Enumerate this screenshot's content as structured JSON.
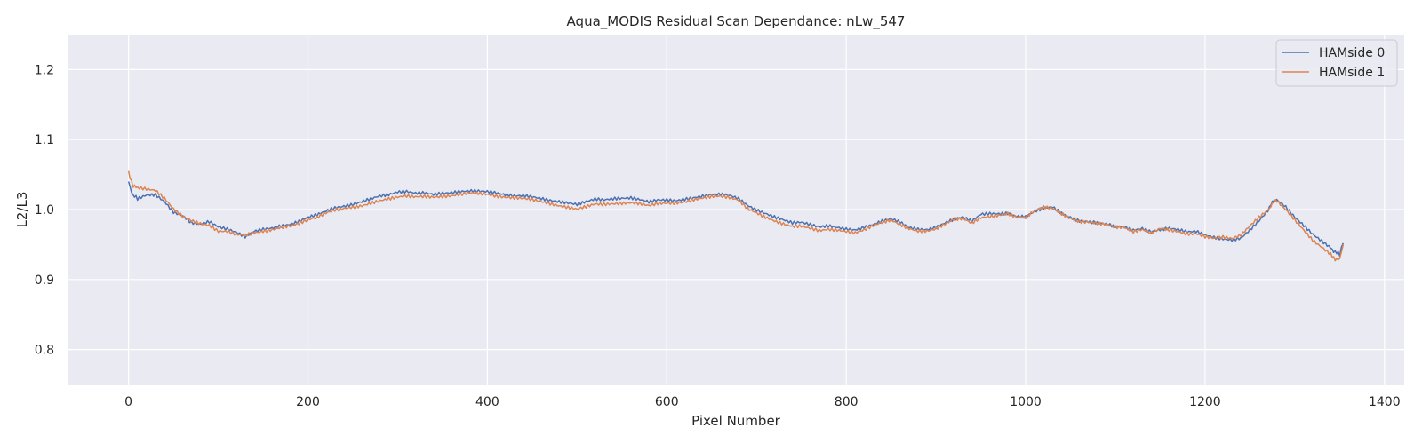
{
  "chart_data": {
    "type": "line",
    "title": "Aqua_MODIS Residual Scan Dependance: nLw_547",
    "xlabel": "Pixel Number",
    "ylabel": "L2/L3",
    "xlim": [
      -67,
      1422
    ],
    "ylim": [
      0.75,
      1.25
    ],
    "xticks": [
      0,
      200,
      400,
      600,
      800,
      1000,
      1200,
      1400
    ],
    "xtick_labels": [
      "0",
      "200",
      "400",
      "600",
      "800",
      "1000",
      "1200",
      "1400"
    ],
    "yticks": [
      0.8,
      0.9,
      1.0,
      1.1,
      1.2
    ],
    "ytick_labels": [
      "0.8",
      "0.9",
      "1.0",
      "1.1",
      "1.2"
    ],
    "grid": true,
    "legend_position": "top-right",
    "background_color": "#eaeaf2",
    "series": [
      {
        "name": "HAMside 0",
        "color": "#4c72b0",
        "x": [
          0,
          5,
          10,
          20,
          30,
          40,
          50,
          60,
          70,
          80,
          90,
          100,
          110,
          120,
          130,
          140,
          150,
          160,
          170,
          180,
          190,
          200,
          210,
          220,
          230,
          240,
          250,
          260,
          270,
          280,
          290,
          300,
          310,
          320,
          330,
          340,
          350,
          360,
          370,
          380,
          390,
          400,
          410,
          420,
          430,
          440,
          450,
          460,
          470,
          480,
          490,
          500,
          510,
          520,
          530,
          540,
          550,
          560,
          570,
          580,
          590,
          600,
          610,
          620,
          630,
          640,
          650,
          660,
          670,
          680,
          690,
          700,
          710,
          720,
          730,
          740,
          750,
          760,
          770,
          780,
          790,
          800,
          810,
          820,
          830,
          840,
          850,
          860,
          870,
          880,
          890,
          900,
          910,
          920,
          930,
          940,
          950,
          960,
          970,
          980,
          990,
          1000,
          1010,
          1020,
          1030,
          1040,
          1050,
          1060,
          1070,
          1080,
          1090,
          1100,
          1110,
          1120,
          1130,
          1140,
          1150,
          1160,
          1170,
          1180,
          1190,
          1200,
          1210,
          1220,
          1230,
          1240,
          1250,
          1260,
          1270,
          1275,
          1280,
          1290,
          1300,
          1310,
          1320,
          1330,
          1340,
          1345,
          1350,
          1354
        ],
        "y": [
          1.04,
          1.02,
          1.015,
          1.02,
          1.02,
          1.01,
          0.995,
          0.99,
          0.98,
          0.978,
          0.982,
          0.975,
          0.972,
          0.968,
          0.962,
          0.97,
          0.973,
          0.975,
          0.978,
          0.98,
          0.984,
          0.99,
          0.993,
          0.998,
          1.002,
          1.004,
          1.006,
          1.01,
          1.014,
          1.018,
          1.02,
          1.024,
          1.025,
          1.023,
          1.024,
          1.022,
          1.024,
          1.025,
          1.027,
          1.028,
          1.028,
          1.027,
          1.025,
          1.022,
          1.02,
          1.02,
          1.018,
          1.015,
          1.012,
          1.01,
          1.008,
          1.006,
          1.01,
          1.014,
          1.013,
          1.015,
          1.016,
          1.017,
          1.015,
          1.012,
          1.015,
          1.015,
          1.014,
          1.016,
          1.018,
          1.02,
          1.022,
          1.022,
          1.02,
          1.015,
          1.005,
          0.998,
          0.993,
          0.988,
          0.984,
          0.98,
          0.981,
          0.978,
          0.975,
          0.977,
          0.975,
          0.973,
          0.972,
          0.976,
          0.98,
          0.985,
          0.988,
          0.983,
          0.975,
          0.972,
          0.971,
          0.974,
          0.98,
          0.985,
          0.988,
          0.982,
          0.992,
          0.993,
          0.993,
          0.994,
          0.99,
          0.99,
          0.998,
          1.003,
          1.005,
          0.996,
          0.99,
          0.985,
          0.984,
          0.982,
          0.98,
          0.976,
          0.975,
          0.97,
          0.972,
          0.967,
          0.97,
          0.972,
          0.97,
          0.967,
          0.968,
          0.963,
          0.96,
          0.958,
          0.957,
          0.96,
          0.972,
          0.985,
          1.0,
          1.01,
          1.015,
          1.005,
          0.99,
          0.978,
          0.965,
          0.955,
          0.945,
          0.94,
          0.935,
          0.952
        ]
      },
      {
        "name": "HAMside 1",
        "color": "#dd8452",
        "x": [
          0,
          5,
          10,
          20,
          30,
          40,
          50,
          60,
          70,
          80,
          90,
          100,
          110,
          120,
          130,
          140,
          150,
          160,
          170,
          180,
          190,
          200,
          210,
          220,
          230,
          240,
          250,
          260,
          270,
          280,
          290,
          300,
          310,
          320,
          330,
          340,
          350,
          360,
          370,
          380,
          390,
          400,
          410,
          420,
          430,
          440,
          450,
          460,
          470,
          480,
          490,
          500,
          510,
          520,
          530,
          540,
          550,
          560,
          570,
          580,
          590,
          600,
          610,
          620,
          630,
          640,
          650,
          660,
          670,
          680,
          690,
          700,
          710,
          720,
          730,
          740,
          750,
          760,
          770,
          780,
          790,
          800,
          810,
          820,
          830,
          840,
          850,
          860,
          870,
          880,
          890,
          900,
          910,
          920,
          930,
          940,
          950,
          960,
          970,
          980,
          990,
          1000,
          1010,
          1020,
          1030,
          1040,
          1050,
          1060,
          1070,
          1080,
          1090,
          1100,
          1110,
          1120,
          1130,
          1140,
          1150,
          1160,
          1170,
          1180,
          1190,
          1200,
          1210,
          1220,
          1230,
          1240,
          1250,
          1260,
          1270,
          1275,
          1280,
          1290,
          1300,
          1310,
          1320,
          1330,
          1340,
          1345,
          1350,
          1354
        ],
        "y": [
          1.052,
          1.035,
          1.03,
          1.028,
          1.026,
          1.015,
          1.0,
          0.99,
          0.984,
          0.98,
          0.978,
          0.97,
          0.97,
          0.966,
          0.965,
          0.968,
          0.97,
          0.972,
          0.975,
          0.977,
          0.98,
          0.985,
          0.988,
          0.994,
          0.998,
          1.0,
          1.002,
          1.004,
          1.008,
          1.012,
          1.015,
          1.018,
          1.02,
          1.019,
          1.02,
          1.019,
          1.02,
          1.021,
          1.023,
          1.025,
          1.024,
          1.022,
          1.019,
          1.017,
          1.016,
          1.015,
          1.013,
          1.01,
          1.007,
          1.004,
          1.002,
          1.0,
          1.004,
          1.008,
          1.008,
          1.009,
          1.01,
          1.011,
          1.01,
          1.007,
          1.01,
          1.01,
          1.01,
          1.011,
          1.014,
          1.016,
          1.018,
          1.018,
          1.016,
          1.012,
          1.0,
          0.994,
          0.988,
          0.983,
          0.979,
          0.976,
          0.977,
          0.974,
          0.971,
          0.973,
          0.972,
          0.97,
          0.968,
          0.972,
          0.978,
          0.982,
          0.985,
          0.978,
          0.972,
          0.968,
          0.968,
          0.971,
          0.978,
          0.985,
          0.986,
          0.98,
          0.988,
          0.99,
          0.992,
          0.995,
          0.99,
          0.99,
          1.0,
          1.005,
          1.003,
          0.995,
          0.988,
          0.983,
          0.982,
          0.98,
          0.978,
          0.974,
          0.973,
          0.967,
          0.97,
          0.965,
          0.972,
          0.97,
          0.968,
          0.965,
          0.966,
          0.962,
          0.96,
          0.962,
          0.96,
          0.965,
          0.978,
          0.99,
          1.0,
          1.008,
          1.013,
          1.0,
          0.985,
          0.97,
          0.955,
          0.945,
          0.935,
          0.93,
          0.928,
          0.95
        ]
      }
    ]
  }
}
